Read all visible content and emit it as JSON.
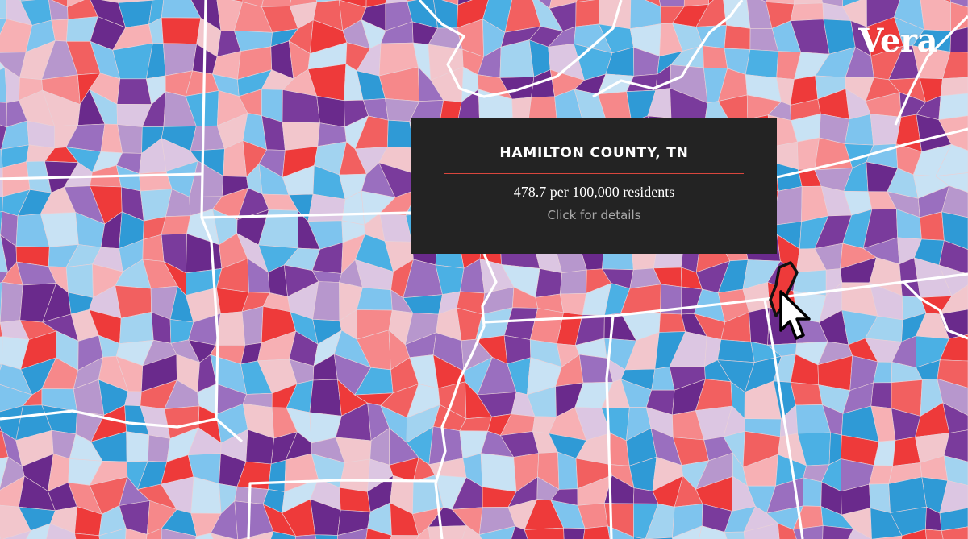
{
  "logo": {
    "text": "Vera"
  },
  "tooltip": {
    "county": "HAMILTON COUNTY, TN",
    "rate_text": "478.7 per 100,000 residents",
    "cta": "Click for details"
  },
  "palette": [
    "#ee3a3a",
    "#f26060",
    "#f6888a",
    "#f7b0b4",
    "#f2c6cc",
    "#dcc6e2",
    "#b797cd",
    "#9a6fbf",
    "#7a3b9c",
    "#6a2a8c",
    "#c8e2f4",
    "#a2d3f0",
    "#7ec4ee",
    "#4bb0e4",
    "#2f9ad6"
  ],
  "accent": "#d9463d",
  "cursor": "arrow-cursor"
}
